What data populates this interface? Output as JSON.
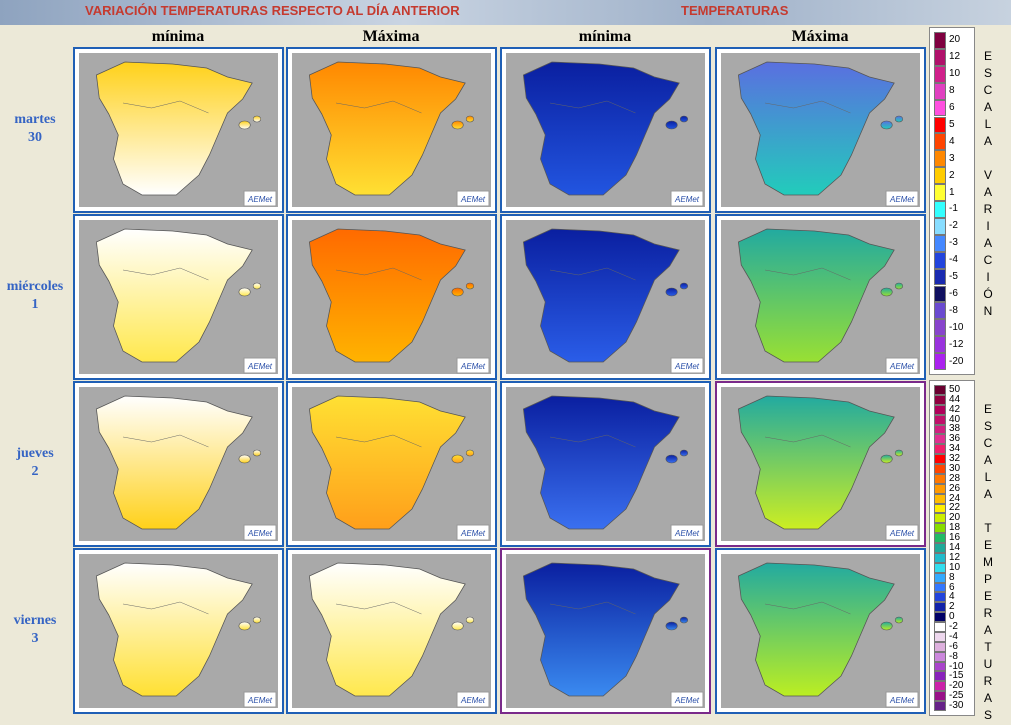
{
  "header": {
    "variation_title": "VARIACIÓN TEMPERATURAS RESPECTO AL DÍA ANTERIOR",
    "temperatures_title": "TEMPERATURAS"
  },
  "columns": [
    "mínima",
    "Máxima",
    "mínima",
    "Máxima"
  ],
  "rows": [
    {
      "day": "martes",
      "date": "30"
    },
    {
      "day": "miércoles",
      "date": "1"
    },
    {
      "day": "jueves",
      "date": "2"
    },
    {
      "day": "viernes",
      "date": "3"
    }
  ],
  "logo": "AEMet",
  "scales": [
    {
      "title": "ESCALA VARIACIÓN",
      "items": [
        {
          "label": "20",
          "color": "#800040"
        },
        {
          "label": "12",
          "color": "#b0106a"
        },
        {
          "label": "10",
          "color": "#d0208a"
        },
        {
          "label": "8",
          "color": "#e040c0"
        },
        {
          "label": "6",
          "color": "#ff50e0"
        },
        {
          "label": "5",
          "color": "#ff0000"
        },
        {
          "label": "4",
          "color": "#ff4400"
        },
        {
          "label": "3",
          "color": "#ff8800"
        },
        {
          "label": "2",
          "color": "#ffcc00"
        },
        {
          "label": "1",
          "color": "#ffff33"
        },
        {
          "label": "-1",
          "color": "#33ffff"
        },
        {
          "label": "-2",
          "color": "#88ddff"
        },
        {
          "label": "-3",
          "color": "#4488ff"
        },
        {
          "label": "-4",
          "color": "#2244dd"
        },
        {
          "label": "-5",
          "color": "#1a2ab0"
        },
        {
          "label": "-6",
          "color": "#101060"
        },
        {
          "label": "-8",
          "color": "#6a4ad0"
        },
        {
          "label": "-10",
          "color": "#8844cc"
        },
        {
          "label": "-12",
          "color": "#9933dd"
        },
        {
          "label": "-20",
          "color": "#aa22ee"
        }
      ]
    },
    {
      "title": "ESCALA TEMPERATURAS",
      "items": [
        {
          "label": "50",
          "color": "#6a0030"
        },
        {
          "label": "44",
          "color": "#900040"
        },
        {
          "label": "42",
          "color": "#b0005a"
        },
        {
          "label": "40",
          "color": "#c0106a"
        },
        {
          "label": "38",
          "color": "#d02080"
        },
        {
          "label": "36",
          "color": "#e03090"
        },
        {
          "label": "34",
          "color": "#f0206a"
        },
        {
          "label": "32",
          "color": "#ff0000"
        },
        {
          "label": "30",
          "color": "#ff4400"
        },
        {
          "label": "28",
          "color": "#ff7700"
        },
        {
          "label": "26",
          "color": "#ff9900"
        },
        {
          "label": "24",
          "color": "#ffbb00"
        },
        {
          "label": "22",
          "color": "#ffee00"
        },
        {
          "label": "20",
          "color": "#ccee00"
        },
        {
          "label": "18",
          "color": "#88dd00"
        },
        {
          "label": "16",
          "color": "#22bb66"
        },
        {
          "label": "14",
          "color": "#20aa99"
        },
        {
          "label": "12",
          "color": "#22bbcc"
        },
        {
          "label": "10",
          "color": "#33ddee"
        },
        {
          "label": "8",
          "color": "#33aaff"
        },
        {
          "label": "6",
          "color": "#3377ff"
        },
        {
          "label": "4",
          "color": "#2244dd"
        },
        {
          "label": "2",
          "color": "#1122aa"
        },
        {
          "label": "0",
          "color": "#000066"
        },
        {
          "label": "-2",
          "color": "#ffffff"
        },
        {
          "label": "-4",
          "color": "#eed8ee"
        },
        {
          "label": "-6",
          "color": "#ddb0dd"
        },
        {
          "label": "-8",
          "color": "#cc88dd"
        },
        {
          "label": "-10",
          "color": "#aa44cc"
        },
        {
          "label": "-15",
          "color": "#8822bb"
        },
        {
          "label": "-20",
          "color": "#cc22aa"
        },
        {
          "label": "-25",
          "color": "#991188"
        },
        {
          "label": "-30",
          "color": "#662288"
        }
      ]
    }
  ]
}
